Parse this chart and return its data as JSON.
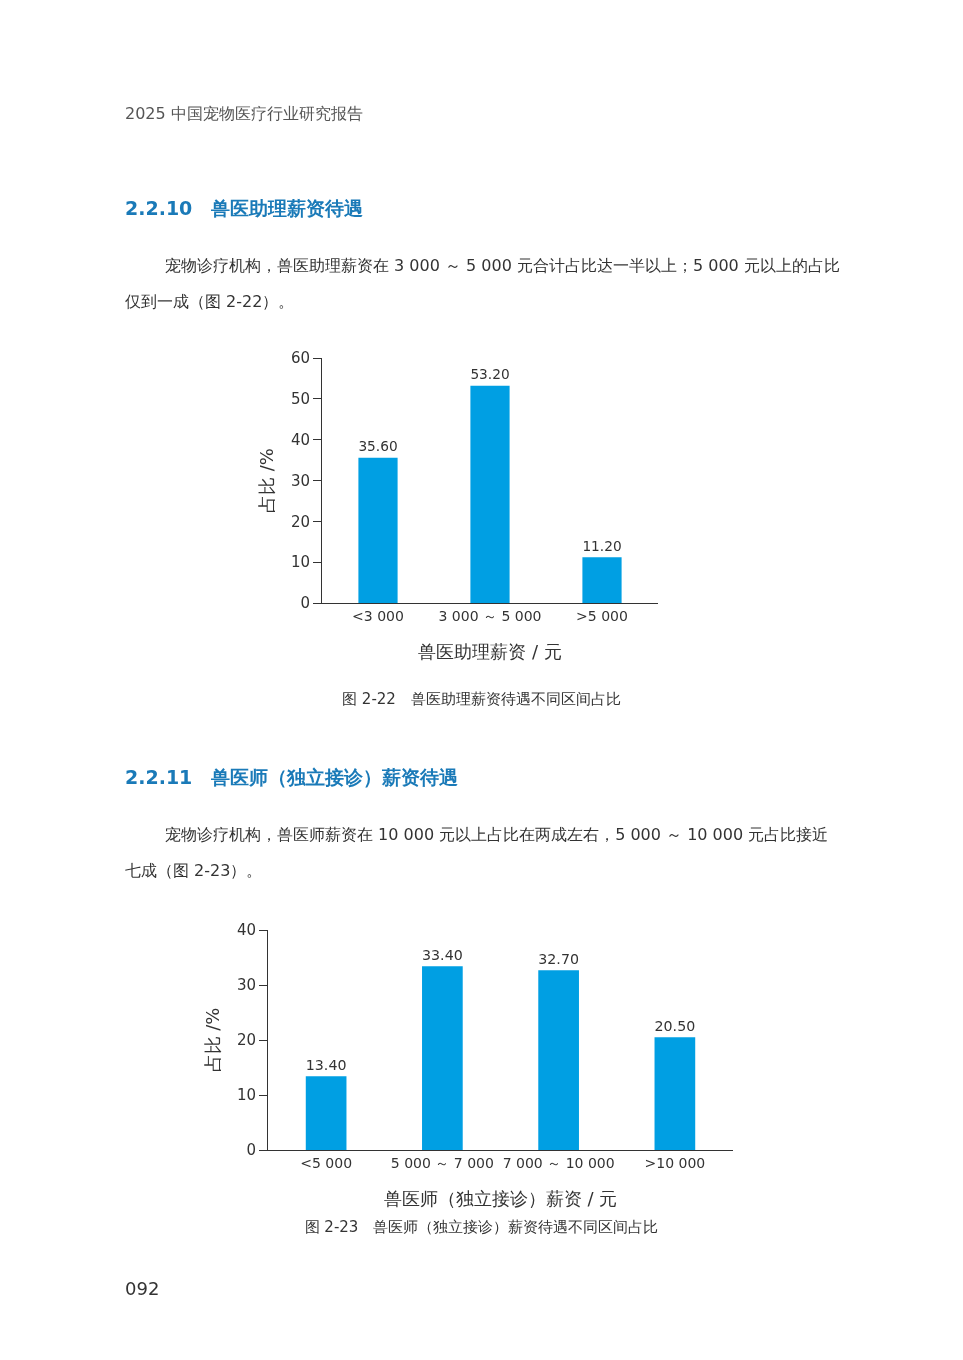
{
  "chart_data": [
    {
      "type": "bar",
      "title": "图 2-22　兽医助理薪资待遇不同区间占比",
      "annotations": [
        "2025 中国宠物医疗行业研究报告",
        "2.2.10　兽医助理薪资待遇",
        "宠物诊疗机构，兽医助理薪资在 3 000 ～ 5 000 元合计占比达一半以上；5 000 元以上的占比仅到一成（图 2-22）。"
      ],
      "categories": [
        "<3 000",
        "3 000 ～ 5 000",
        ">5 000"
      ],
      "values": [
        35.6,
        53.2,
        11.2
      ],
      "value_labels": [
        "35.60",
        "53.20",
        "11.20"
      ],
      "color": "#009fe3",
      "xlabel": "兽医助理薪资 / 元",
      "ylabel": "占比 /%",
      "ylim": [
        0,
        60
      ],
      "yticks": [
        0,
        10,
        20,
        30,
        40,
        50,
        60
      ],
      "grid": false
    },
    {
      "type": "bar",
      "title": "图 2-23　兽医师（独立接诊）薪资待遇不同区间占比",
      "annotations": [
        "2.2.11　兽医师（独立接诊）薪资待遇",
        "宠物诊疗机构，兽医师薪资在 10 000 元以上占比在两成左右，5 000 ～ 10 000 元占比接近七成（图 2-23）。",
        "092"
      ],
      "categories": [
        "<5 000",
        "5 000 ～ 7 000",
        "7 000 ～ 10 000",
        ">10 000"
      ],
      "values": [
        13.4,
        33.4,
        32.7,
        20.5
      ],
      "value_labels": [
        "13.40",
        "33.40",
        "32.70",
        "20.50"
      ],
      "color": "#009fe3",
      "xlabel": "兽医师（独立接诊）薪资 / 元",
      "ylabel": "占比 /%",
      "ylim": [
        0,
        40
      ],
      "yticks": [
        0,
        10,
        20,
        30,
        40
      ],
      "grid": false
    }
  ]
}
